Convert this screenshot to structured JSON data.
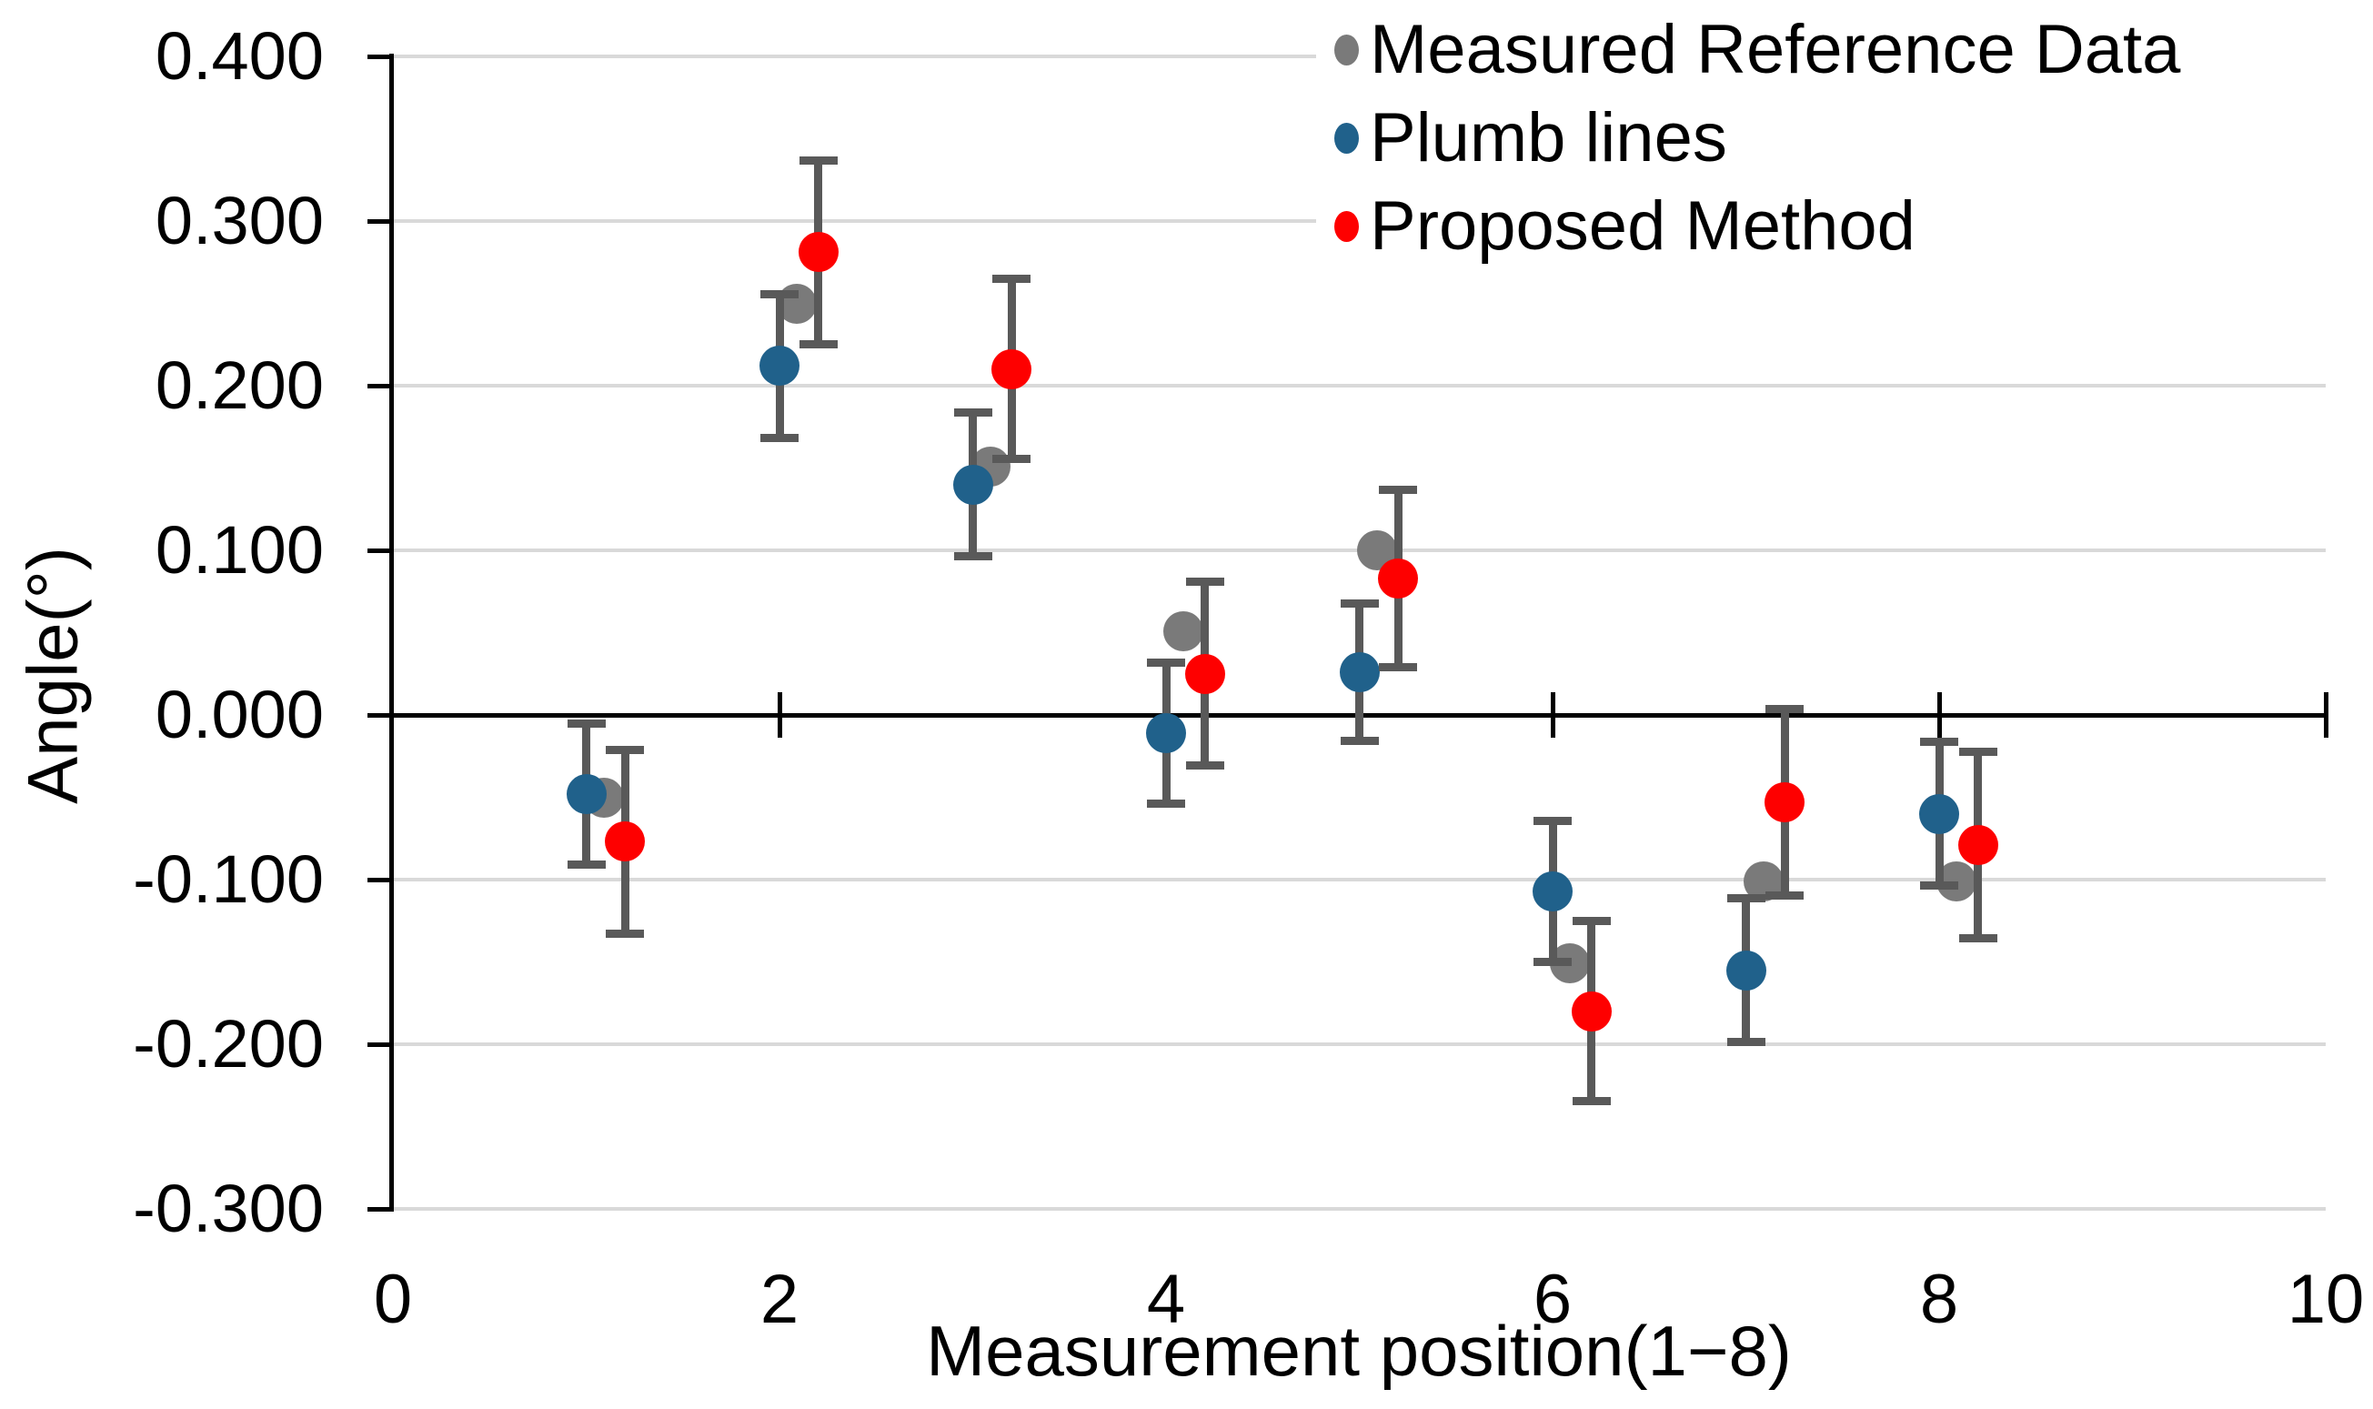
{
  "chart_data": {
    "type": "scatter",
    "title": "",
    "xlabel": "Measurement position(1−8)",
    "ylabel": "Angle(°)",
    "x_axis": {
      "min": 0,
      "max": 10,
      "tick_values": [
        0,
        2,
        4,
        6,
        8,
        10
      ],
      "tick_labels": [
        "0",
        "2",
        "4",
        "6",
        "8",
        "10"
      ]
    },
    "y_axis": {
      "min": -0.3,
      "max": 0.4,
      "tick_values": [
        0.4,
        0.3,
        0.2,
        0.1,
        0.0,
        -0.1,
        -0.2,
        -0.3
      ],
      "tick_labels": [
        "0.400",
        "0.300",
        "0.200",
        "0.100",
        "0.000",
        "-0.100",
        "-0.200",
        "-0.300"
      ]
    },
    "grid": "horizontal-gridlines-on",
    "legend_position": "top-right-inside",
    "categories": [
      1,
      2,
      3,
      4,
      5,
      6,
      7,
      8
    ],
    "series": [
      {
        "name": "Measured Reference Data",
        "color": "#7A7A7A",
        "marker": "circle",
        "x_offset": 0.09,
        "values": [
          -0.05,
          0.25,
          0.151,
          0.051,
          0.1,
          -0.151,
          -0.101,
          -0.101
        ],
        "error_bars": null
      },
      {
        "name": "Plumb lines",
        "color": "#20618B",
        "marker": "circle",
        "x_offset": 0.0,
        "values": [
          -0.048,
          0.212,
          0.14,
          -0.011,
          0.026,
          -0.107,
          -0.155,
          -0.06
        ],
        "error_bars": [
          0.043,
          0.044,
          0.044,
          0.043,
          0.042,
          0.043,
          0.044,
          0.044
        ]
      },
      {
        "name": "Proposed Method",
        "color": "#FE0000",
        "marker": "circle",
        "x_offset": 0.2,
        "values": [
          -0.077,
          0.281,
          0.21,
          0.025,
          0.083,
          -0.18,
          -0.053,
          -0.079
        ],
        "error_bars": [
          0.056,
          0.056,
          0.055,
          0.056,
          0.054,
          0.055,
          0.057,
          0.057
        ]
      }
    ],
    "error_bar_color": "#595959",
    "gridline_color": "#D9D9D9",
    "axis_color": "#000000"
  }
}
